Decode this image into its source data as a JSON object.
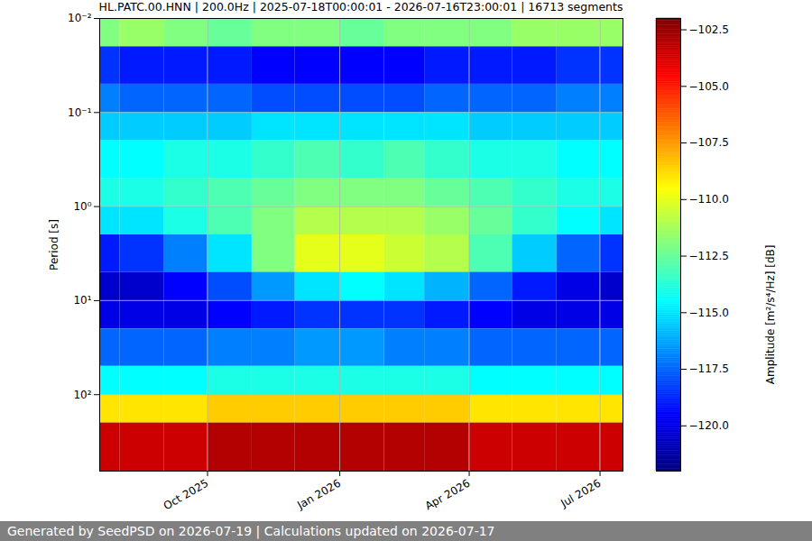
{
  "chart_data": {
    "type": "heatmap",
    "title": "HL.PATC.00.HNN | 200.0Hz | 2025-07-18T00:00:01 - 2026-07-16T23:00:01 | 16713 segments",
    "footer": "Generated by SeedPSD on 2026-07-19 | Calculations updated on 2026-07-17",
    "y_label": "Period [s]",
    "colorbar_label": "Amplitude [m²/s⁴/Hz] [dB]",
    "log": "y",
    "grid": true,
    "xlim": [
      "2025-07-18T00:00:01",
      "2026-07-16T23:00:01"
    ],
    "xticks": [
      {
        "value": "2025-10-01",
        "label": "Oct 2025"
      },
      {
        "value": "2026-01-01",
        "label": "Jan 2026"
      },
      {
        "value": "2026-04-01",
        "label": "Apr 2026"
      },
      {
        "value": "2026-07-01",
        "label": "Jul 2026"
      }
    ],
    "ylim": [
      0.01,
      650
    ],
    "yticks": [
      {
        "value": 0.01,
        "label": "10⁻²"
      },
      {
        "value": 0.1,
        "label": "10⁻¹"
      },
      {
        "value": 1,
        "label": "10⁰"
      },
      {
        "value": 10,
        "label": "10¹"
      },
      {
        "value": 100,
        "label": "10²"
      }
    ],
    "x_edges": [
      "2025-07-18T00:00:01",
      "2025-08-01",
      "2025-09-01",
      "2025-10-01",
      "2025-11-01",
      "2025-12-01",
      "2026-01-01",
      "2026-02-01",
      "2026-03-01",
      "2026-04-01",
      "2026-05-01",
      "2026-06-01",
      "2026-07-01",
      "2026-07-16T23:00:01"
    ],
    "y_edges": [
      0.01,
      0.02,
      0.05,
      0.1,
      0.2,
      0.5,
      1,
      2,
      5,
      10,
      20,
      50,
      100,
      200,
      650
    ],
    "values": [
      [
        -112,
        -111.5,
        -112,
        -112.5,
        -112,
        -112,
        -112.5,
        -112,
        -112,
        -112,
        -111.5,
        -111.5,
        -111.5
      ],
      [
        -118.5,
        -119,
        -119,
        -119,
        -119.5,
        -119.5,
        -119.5,
        -119.5,
        -119,
        -119,
        -119,
        -118.5,
        -118.5
      ],
      [
        -117,
        -117.5,
        -117.5,
        -117.5,
        -118,
        -118,
        -118,
        -118,
        -117.5,
        -117.5,
        -117.5,
        -117,
        -117
      ],
      [
        -115.5,
        -115.5,
        -115.5,
        -115.5,
        -115,
        -115,
        -115,
        -115,
        -115,
        -115.5,
        -115.5,
        -115.5,
        -115.5
      ],
      [
        -114.5,
        -114.5,
        -114,
        -114,
        -113.5,
        -113,
        -113.5,
        -113,
        -113.5,
        -114,
        -114,
        -114.5,
        -114.5
      ],
      [
        -114,
        -114,
        -113.5,
        -113,
        -112.5,
        -112,
        -112,
        -112,
        -112.5,
        -113,
        -113.5,
        -114,
        -114
      ],
      [
        -115,
        -115,
        -114,
        -113,
        -112,
        -111,
        -111,
        -111,
        -111.5,
        -112.5,
        -113.5,
        -114.5,
        -115
      ],
      [
        -119,
        -118.5,
        -117,
        -115,
        -112,
        -110,
        -110,
        -110.5,
        -111,
        -113,
        -115.5,
        -117.5,
        -118.5
      ],
      [
        -120.5,
        -120.5,
        -119.5,
        -118,
        -116.5,
        -115,
        -114.5,
        -115,
        -116,
        -117.5,
        -119,
        -120,
        -120.5
      ],
      [
        -120,
        -120,
        -120,
        -119.5,
        -119,
        -118.5,
        -118.5,
        -118.5,
        -119,
        -119.5,
        -120,
        -120,
        -120
      ],
      [
        -117.5,
        -117.5,
        -117.5,
        -117,
        -117,
        -116.5,
        -116.5,
        -117,
        -117,
        -117.5,
        -117.5,
        -117.5,
        -117.5
      ],
      [
        -114.5,
        -114.5,
        -114.5,
        -114,
        -114,
        -114,
        -114,
        -114,
        -114,
        -114.5,
        -114.5,
        -114.5,
        -114.5
      ],
      [
        -109,
        -109,
        -109,
        -108.5,
        -108.5,
        -108.5,
        -108.5,
        -108.5,
        -108.5,
        -109,
        -109,
        -109,
        -109
      ],
      [
        -103.5,
        -103.5,
        -103.5,
        -103,
        -103,
        -103,
        -103,
        -103,
        -103,
        -103.5,
        -103.5,
        -103.5,
        -103.5
      ]
    ],
    "clim": [
      -122,
      -102
    ],
    "cticks": [
      {
        "value": -120,
        "label": "−120.0"
      },
      {
        "value": -117.5,
        "label": "−117.5"
      },
      {
        "value": -115,
        "label": "−115.0"
      },
      {
        "value": -112.5,
        "label": "−112.5"
      },
      {
        "value": -110,
        "label": "−110.0"
      },
      {
        "value": -107.5,
        "label": "−107.5"
      },
      {
        "value": -105,
        "label": "−105.0"
      },
      {
        "value": -102.5,
        "label": "−102.5"
      }
    ]
  }
}
